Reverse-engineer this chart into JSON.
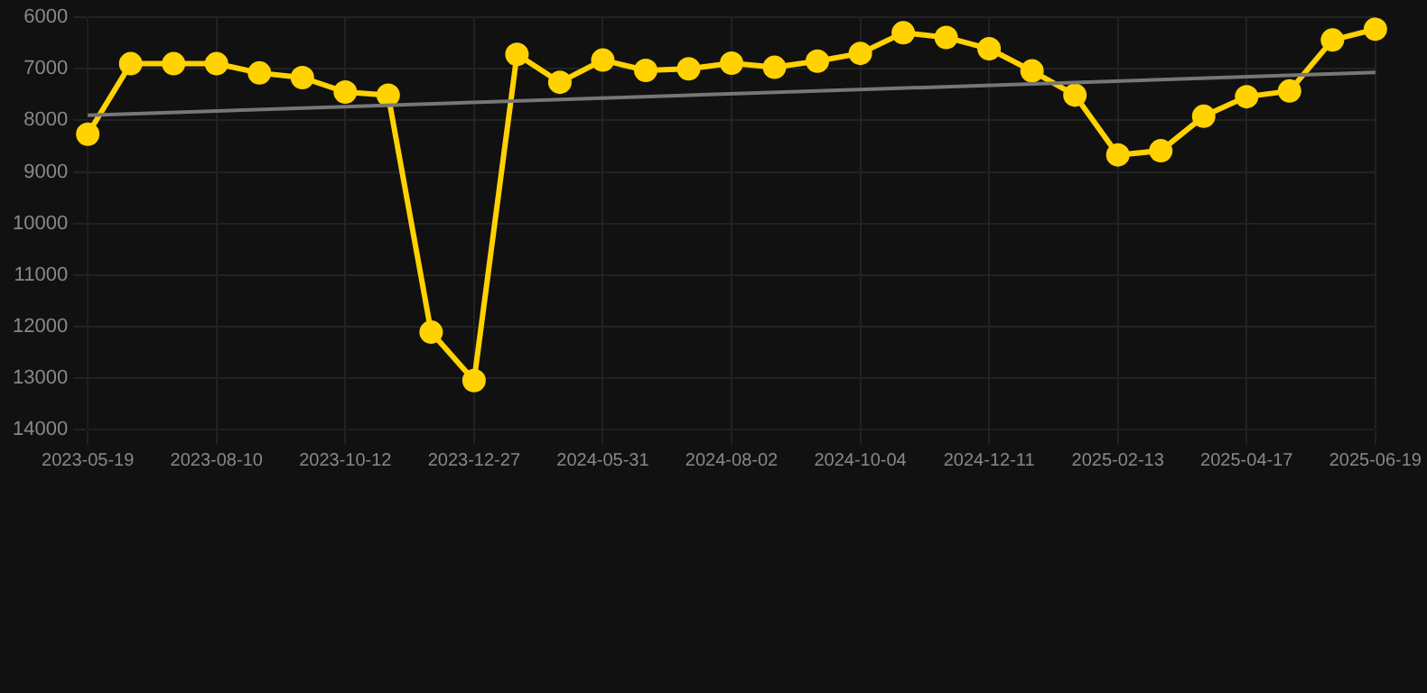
{
  "chart_data": {
    "type": "line",
    "categories": [
      "2023-05-19",
      null,
      null,
      "2023-08-10",
      null,
      null,
      "2023-10-12",
      null,
      null,
      "2023-12-27",
      null,
      null,
      "2024-05-31",
      null,
      null,
      "2024-08-02",
      null,
      null,
      "2024-10-04",
      null,
      null,
      "2024-12-11",
      null,
      null,
      "2025-02-13",
      null,
      null,
      "2025-04-17",
      null,
      null,
      "2025-06-19"
    ],
    "series": [
      {
        "color": "#ffd200",
        "marker": "circle",
        "values": [
          8270,
          6900,
          6900,
          6900,
          7080,
          7170,
          7450,
          7510,
          12110,
          13050,
          6720,
          7260,
          6830,
          7030,
          7000,
          6890,
          6970,
          6850,
          6700,
          6300,
          6390,
          6610,
          7040,
          7510,
          8670,
          8590,
          7920,
          7540,
          7430,
          6440,
          6230
        ]
      },
      {
        "type": "line",
        "color": "#777777",
        "marker": "none",
        "values": [
          7900,
          null,
          null,
          null,
          null,
          null,
          null,
          null,
          null,
          null,
          null,
          null,
          null,
          null,
          null,
          null,
          null,
          null,
          null,
          null,
          null,
          null,
          null,
          null,
          null,
          null,
          null,
          null,
          null,
          null,
          7070
        ]
      }
    ],
    "ylim": [
      14000,
      6000
    ],
    "yticks": [
      6000,
      7000,
      8000,
      9000,
      10000,
      11000,
      12000,
      13000,
      14000
    ],
    "grid": true,
    "legend": false
  }
}
